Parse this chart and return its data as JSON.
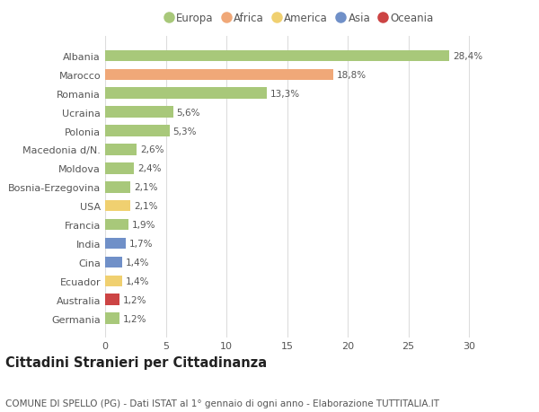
{
  "categories": [
    "Albania",
    "Marocco",
    "Romania",
    "Ucraina",
    "Polonia",
    "Macedonia d/N.",
    "Moldova",
    "Bosnia-Erzegovina",
    "USA",
    "Francia",
    "India",
    "Cina",
    "Ecuador",
    "Australia",
    "Germania"
  ],
  "values": [
    28.4,
    18.8,
    13.3,
    5.6,
    5.3,
    2.6,
    2.4,
    2.1,
    2.1,
    1.9,
    1.7,
    1.4,
    1.4,
    1.2,
    1.2
  ],
  "labels": [
    "28,4%",
    "18,8%",
    "13,3%",
    "5,6%",
    "5,3%",
    "2,6%",
    "2,4%",
    "2,1%",
    "2,1%",
    "1,9%",
    "1,7%",
    "1,4%",
    "1,4%",
    "1,2%",
    "1,2%"
  ],
  "continents": [
    "Europa",
    "Africa",
    "Europa",
    "Europa",
    "Europa",
    "Europa",
    "Europa",
    "Europa",
    "America",
    "Europa",
    "Asia",
    "Asia",
    "America",
    "Oceania",
    "Europa"
  ],
  "continent_colors": {
    "Europa": "#a8c87a",
    "Africa": "#f0a878",
    "America": "#f0d070",
    "Asia": "#7090c8",
    "Oceania": "#cc4444"
  },
  "legend_order": [
    "Europa",
    "Africa",
    "America",
    "Asia",
    "Oceania"
  ],
  "title": "Cittadini Stranieri per Cittadinanza",
  "subtitle": "COMUNE DI SPELLO (PG) - Dati ISTAT al 1° gennaio di ogni anno - Elaborazione TUTTITALIA.IT",
  "xlim": [
    0,
    32
  ],
  "xticks": [
    0,
    5,
    10,
    15,
    20,
    25,
    30
  ],
  "background_color": "#ffffff",
  "grid_color": "#dddddd",
  "bar_height": 0.6,
  "title_fontsize": 10.5,
  "subtitle_fontsize": 7.5,
  "label_fontsize": 7.5,
  "tick_fontsize": 8,
  "legend_fontsize": 8.5
}
